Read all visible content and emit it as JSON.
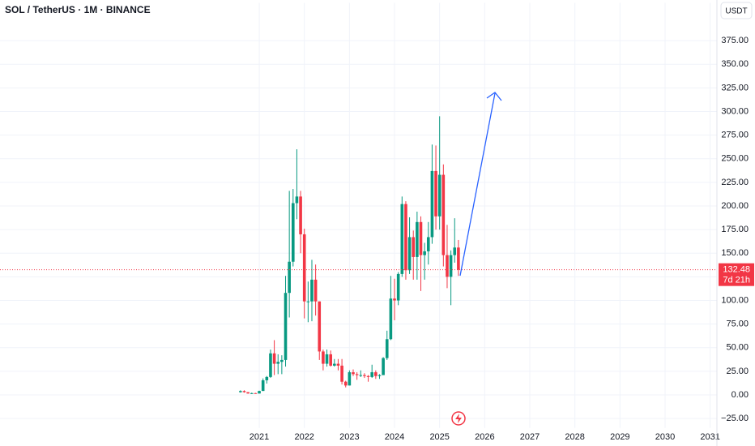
{
  "chart_data": {
    "type": "candlestick",
    "title": "SOL / TetherUS · 1M · BINANCE",
    "currency": "USDT",
    "up_color": "#089981",
    "down_color": "#f23645",
    "open": [
      2.9,
      4.1,
      2.9,
      1.5,
      1.9,
      1.5,
      4.2,
      15.5,
      19,
      44,
      33,
      35,
      37,
      108,
      141,
      203,
      210,
      170,
      99,
      99,
      122,
      99,
      46,
      33,
      43,
      31,
      33,
      31,
      14,
      10,
      24,
      22,
      21,
      21,
      20,
      19,
      24,
      20,
      21,
      39,
      59,
      102,
      100,
      128,
      202,
      132,
      167,
      146,
      183,
      148,
      152,
      167,
      237,
      189,
      233,
      148,
      125,
      148,
      156
    ],
    "high": [
      4.9,
      4.9,
      3.0,
      2.4,
      2.2,
      4.5,
      17.5,
      20,
      48,
      58,
      43,
      42,
      126,
      216,
      218,
      260,
      216,
      176,
      120,
      143,
      138,
      99,
      48,
      48,
      47,
      38,
      38,
      38,
      15,
      26,
      27,
      24,
      26,
      23,
      21,
      32,
      26,
      22,
      40,
      68,
      126,
      123,
      130,
      210,
      205,
      188,
      174,
      194,
      189,
      161,
      183,
      265,
      264,
      295,
      244,
      180,
      153,
      187,
      164
    ],
    "low": [
      2.5,
      2.4,
      1.4,
      1.0,
      1.3,
      1.5,
      4.2,
      12,
      18,
      21,
      22,
      22,
      30,
      82,
      136,
      186,
      150,
      81,
      77,
      78,
      84,
      37,
      26,
      30,
      30,
      30,
      26,
      11,
      8,
      10,
      20,
      16,
      19,
      18,
      14,
      18,
      17,
      17,
      21,
      37,
      58,
      79,
      95,
      125,
      122,
      128,
      122,
      122,
      110,
      122,
      138,
      160,
      175,
      175,
      136,
      113,
      95,
      140,
      126
    ],
    "close": [
      4.1,
      2.9,
      1.5,
      1.9,
      1.5,
      4.2,
      15.5,
      19,
      44,
      33,
      35,
      37,
      108,
      141,
      203,
      210,
      170,
      99,
      99,
      122,
      99,
      46,
      33,
      43,
      31,
      33,
      31,
      14,
      10,
      24,
      22,
      21,
      21,
      20,
      19,
      24,
      20,
      21,
      39,
      59,
      102,
      100,
      128,
      202,
      132,
      167,
      146,
      183,
      148,
      152,
      167,
      237,
      189,
      233,
      148,
      125,
      148,
      156,
      132.48
    ],
    "last_price": 132.48,
    "countdown": "7d 21h",
    "xlim": [
      2015.25,
      2031.15
    ],
    "xticks": [
      2021,
      2022,
      2023,
      2024,
      2025,
      2026,
      2027,
      2028,
      2029,
      2030,
      2031
    ],
    "ylim": [
      -35,
      415
    ],
    "yticks": [
      {
        "value": -25,
        "label": "−25.00"
      },
      {
        "value": 0,
        "label": "0.00"
      },
      {
        "value": 25,
        "label": "25.00"
      },
      {
        "value": 50,
        "label": "50.00"
      },
      {
        "value": 75,
        "label": "75.00"
      },
      {
        "value": 100,
        "label": "100.00"
      },
      {
        "value": 125,
        "label": "125.00"
      },
      {
        "value": 150,
        "label": "150.00"
      },
      {
        "value": 175,
        "label": "175.00"
      },
      {
        "value": 200,
        "label": "200.00"
      },
      {
        "value": 225,
        "label": "225.00"
      },
      {
        "value": 250,
        "label": "250.00"
      },
      {
        "value": 275,
        "label": "275.00"
      },
      {
        "value": 300,
        "label": "300.00"
      },
      {
        "value": 325,
        "label": "325.00"
      },
      {
        "value": 350,
        "label": "350.00"
      },
      {
        "value": 375,
        "label": "375.00"
      }
    ],
    "grid": true
  }
}
